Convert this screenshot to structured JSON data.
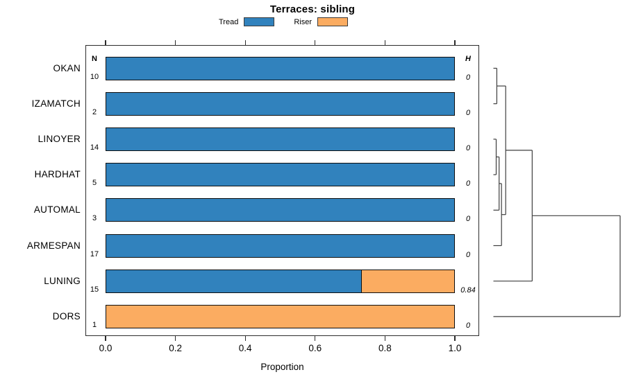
{
  "title": "Terraces: sibling",
  "legend": {
    "items": [
      {
        "label": "Tread",
        "color": "#3182BD"
      },
      {
        "label": "Riser",
        "color": "#FBAC61"
      }
    ]
  },
  "columns": {
    "n_header": "N",
    "h_header": "H"
  },
  "axis": {
    "label": "Proportion"
  },
  "chart_data": {
    "type": "bar",
    "orientation": "horizontal",
    "stacked": true,
    "title": "Terraces: sibling",
    "xlabel": "Proportion",
    "xlim": [
      0,
      1
    ],
    "xtick_values": [
      0,
      0.2,
      0.4,
      0.6,
      0.8,
      1.0
    ],
    "xtick_labels": [
      "0.0",
      "0.2",
      "0.4",
      "0.6",
      "0.8",
      "1.0"
    ],
    "grid": false,
    "legend_position": "top",
    "categories": [
      "OKAN",
      "IZAMATCH",
      "LINOYER",
      "HARDHAT",
      "AUTOMAL",
      "ARMESPAN",
      "LUNING",
      "DORS"
    ],
    "rows": [
      {
        "label": "OKAN",
        "n": "10",
        "h": "0",
        "tread": 1,
        "riser": 0
      },
      {
        "label": "IZAMATCH",
        "n": "2",
        "h": "0",
        "tread": 1,
        "riser": 0
      },
      {
        "label": "LINOYER",
        "n": "14",
        "h": "0",
        "tread": 1,
        "riser": 0
      },
      {
        "label": "HARDHAT",
        "n": "5",
        "h": "0",
        "tread": 1,
        "riser": 0
      },
      {
        "label": "AUTOMAL",
        "n": "3",
        "h": "0",
        "tread": 1,
        "riser": 0
      },
      {
        "label": "ARMESPAN",
        "n": "17",
        "h": "0",
        "tread": 1,
        "riser": 0
      },
      {
        "label": "LUNING",
        "n": "15",
        "h": "0.84",
        "tread": 0.733,
        "riser": 0.267
      },
      {
        "label": "DORS",
        "n": "1",
        "h": "0",
        "tread": 0,
        "riser": 1
      }
    ],
    "series": [
      {
        "name": "Tread",
        "color": "#3182BD",
        "values": [
          1,
          1,
          1,
          1,
          1,
          1,
          0.733,
          0
        ]
      },
      {
        "name": "Riser",
        "color": "#FBAC61",
        "values": [
          0,
          0,
          0,
          0,
          0,
          0,
          0.267,
          1
        ]
      }
    ],
    "dendrogram": {
      "note": "heights normalized 0-1, drawn right of plot",
      "merges": [
        {
          "a": "L0",
          "b": "L1",
          "h": 0.027
        },
        {
          "a": "L2",
          "b": "L3",
          "h": 0.022
        },
        {
          "a": "M1",
          "b": "L4",
          "h": 0.045
        },
        {
          "a": "M2",
          "b": "L5",
          "h": 0.064
        },
        {
          "a": "M0",
          "b": "M3",
          "h": 0.097
        },
        {
          "a": "M4",
          "b": "L6",
          "h": 0.306
        },
        {
          "a": "M5",
          "b": "L7",
          "h": 1.0
        }
      ]
    }
  }
}
